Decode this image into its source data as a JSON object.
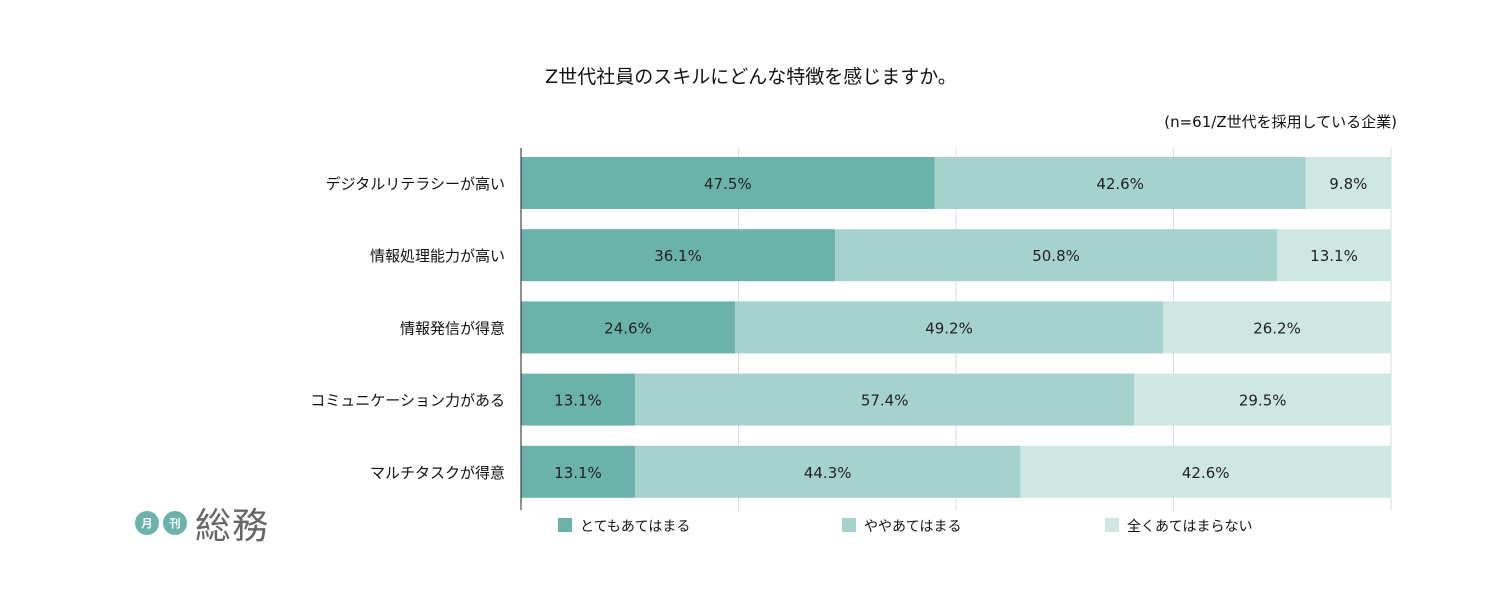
{
  "chart_data": {
    "type": "bar",
    "orientation": "horizontal-stacked-100",
    "title": "Z世代社員のスキルにどんな特徴を感じますか。",
    "note": "(n=61/Z世代を採用している企業)",
    "categories": [
      "デジタルリテラシーが高い",
      "情報処理能力が高い",
      "情報発信が得意",
      "コミュニケーション力がある",
      "マルチタスクが得意"
    ],
    "series": [
      {
        "name": "とてもあてはまる",
        "color": "#6bb3aa",
        "values": [
          47.5,
          36.1,
          24.6,
          13.1,
          13.1
        ]
      },
      {
        "name": "ややあてはまる",
        "color": "#a5d2cc",
        "values": [
          42.6,
          50.8,
          49.2,
          57.4,
          44.3
        ]
      },
      {
        "name": "全くあてはまらない",
        "color": "#cfe7e3",
        "values": [
          9.8,
          13.1,
          26.2,
          29.5,
          42.6
        ]
      }
    ],
    "xlim": [
      0,
      100
    ],
    "grid": true,
    "legend": "bottom"
  },
  "logo": {
    "circle1": "月",
    "circle2": "刊",
    "text": "総務"
  }
}
